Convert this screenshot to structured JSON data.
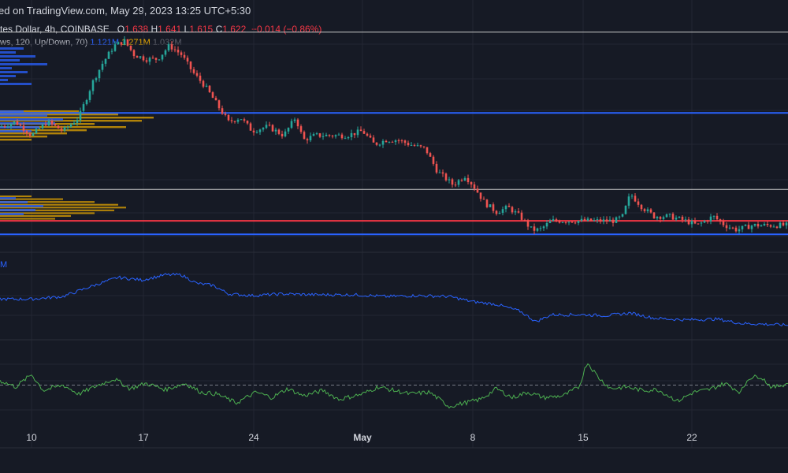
{
  "header": {
    "caption": "ed on TradingView.com, May 29, 2023 13:25 UTC+5:30"
  },
  "legend": {
    "symbol": "tes Dollar, 4h, COINBASE",
    "o_label": "O",
    "o_value": "1.638",
    "h_label": "H",
    "h_value": "1.641",
    "l_label": "L",
    "l_value": "1.615",
    "c_label": "C",
    "c_value": "1.622",
    "change": "−0.014 (−0.86%)"
  },
  "volume_profile_legend": {
    "label": "ws, 120, Up/Down, 70)",
    "v1": "1.121M",
    "v2": "1.271M",
    "v3": "1.032M"
  },
  "obv_legend": {
    "label": "M"
  },
  "colors": {
    "background": "#161a25",
    "grid": "#232632",
    "up_candle": "#26a69a",
    "down_candle": "#ef5350",
    "white_line": "#c8c8c8",
    "blue_line": "#2962ff",
    "red_line": "#f23645",
    "obv_line": "#2962ff",
    "rsi_line": "#4caf50",
    "profile_orange": "#e6a700",
    "profile_blue": "#2962ff"
  },
  "chart_data": {
    "type": "candlestick",
    "x_ticks": [
      "10",
      "17",
      "24",
      "May",
      "8",
      "15",
      "22"
    ],
    "price_path": [
      [
        0,
        1.68
      ],
      [
        20,
        1.69
      ],
      [
        40,
        1.66
      ],
      [
        60,
        1.69
      ],
      [
        80,
        1.67
      ],
      [
        100,
        1.7
      ],
      [
        118,
        1.78
      ],
      [
        130,
        1.82
      ],
      [
        145,
        1.86
      ],
      [
        158,
        1.87
      ],
      [
        170,
        1.84
      ],
      [
        185,
        1.83
      ],
      [
        200,
        1.83
      ],
      [
        215,
        1.86
      ],
      [
        230,
        1.84
      ],
      [
        245,
        1.8
      ],
      [
        260,
        1.77
      ],
      [
        275,
        1.73
      ],
      [
        290,
        1.69
      ],
      [
        305,
        1.7
      ],
      [
        320,
        1.67
      ],
      [
        340,
        1.68
      ],
      [
        360,
        1.66
      ],
      [
        375,
        1.7
      ],
      [
        385,
        1.65
      ],
      [
        400,
        1.66
      ],
      [
        420,
        1.66
      ],
      [
        440,
        1.66
      ],
      [
        460,
        1.67
      ],
      [
        475,
        1.64
      ],
      [
        490,
        1.65
      ],
      [
        505,
        1.65
      ],
      [
        520,
        1.64
      ],
      [
        540,
        1.63
      ],
      [
        555,
        1.58
      ],
      [
        575,
        1.55
      ],
      [
        590,
        1.57
      ],
      [
        600,
        1.55
      ],
      [
        615,
        1.51
      ],
      [
        630,
        1.49
      ],
      [
        645,
        1.5
      ],
      [
        660,
        1.48
      ],
      [
        675,
        1.45
      ],
      [
        685,
        1.45
      ],
      [
        700,
        1.47
      ],
      [
        720,
        1.47
      ],
      [
        740,
        1.47
      ],
      [
        760,
        1.47
      ],
      [
        780,
        1.47
      ],
      [
        790,
        1.48
      ],
      [
        800,
        1.53
      ],
      [
        815,
        1.5
      ],
      [
        830,
        1.48
      ],
      [
        850,
        1.48
      ],
      [
        870,
        1.47
      ],
      [
        885,
        1.46
      ],
      [
        905,
        1.48
      ],
      [
        920,
        1.46
      ],
      [
        935,
        1.45
      ],
      [
        955,
        1.46
      ],
      [
        975,
        1.46
      ],
      [
        1000,
        1.46
      ]
    ],
    "levels": [
      {
        "name": "white-top",
        "price": 1.89
      },
      {
        "name": "blue-upper",
        "price": 1.71
      },
      {
        "name": "white-mid",
        "price": 1.54
      },
      {
        "name": "red",
        "price": 1.47
      },
      {
        "name": "blue-lower",
        "price": 1.44
      }
    ],
    "obv_path": [
      [
        0,
        0.46
      ],
      [
        40,
        0.46
      ],
      [
        80,
        0.49
      ],
      [
        120,
        0.62
      ],
      [
        150,
        0.71
      ],
      [
        180,
        0.68
      ],
      [
        210,
        0.74
      ],
      [
        230,
        0.74
      ],
      [
        250,
        0.64
      ],
      [
        270,
        0.62
      ],
      [
        290,
        0.52
      ],
      [
        320,
        0.5
      ],
      [
        360,
        0.52
      ],
      [
        400,
        0.51
      ],
      [
        450,
        0.51
      ],
      [
        490,
        0.49
      ],
      [
        530,
        0.5
      ],
      [
        570,
        0.49
      ],
      [
        600,
        0.43
      ],
      [
        630,
        0.4
      ],
      [
        660,
        0.32
      ],
      [
        680,
        0.2
      ],
      [
        700,
        0.28
      ],
      [
        740,
        0.28
      ],
      [
        770,
        0.27
      ],
      [
        800,
        0.3
      ],
      [
        830,
        0.24
      ],
      [
        870,
        0.22
      ],
      [
        910,
        0.23
      ],
      [
        940,
        0.18
      ],
      [
        970,
        0.17
      ],
      [
        1000,
        0.16
      ]
    ],
    "rsi_path": [
      [
        0,
        55
      ],
      [
        20,
        48
      ],
      [
        40,
        62
      ],
      [
        55,
        44
      ],
      [
        80,
        50
      ],
      [
        100,
        40
      ],
      [
        125,
        50
      ],
      [
        145,
        57
      ],
      [
        165,
        46
      ],
      [
        185,
        52
      ],
      [
        210,
        45
      ],
      [
        235,
        52
      ],
      [
        255,
        42
      ],
      [
        275,
        40
      ],
      [
        300,
        30
      ],
      [
        325,
        42
      ],
      [
        345,
        36
      ],
      [
        365,
        46
      ],
      [
        385,
        38
      ],
      [
        410,
        44
      ],
      [
        430,
        34
      ],
      [
        460,
        40
      ],
      [
        480,
        48
      ],
      [
        500,
        44
      ],
      [
        520,
        40
      ],
      [
        545,
        42
      ],
      [
        570,
        26
      ],
      [
        590,
        30
      ],
      [
        610,
        34
      ],
      [
        630,
        46
      ],
      [
        650,
        36
      ],
      [
        670,
        42
      ],
      [
        690,
        36
      ],
      [
        715,
        38
      ],
      [
        735,
        48
      ],
      [
        745,
        76
      ],
      [
        760,
        58
      ],
      [
        775,
        46
      ],
      [
        795,
        48
      ],
      [
        815,
        44
      ],
      [
        835,
        45
      ],
      [
        860,
        32
      ],
      [
        880,
        42
      ],
      [
        900,
        45
      ],
      [
        920,
        52
      ],
      [
        940,
        42
      ],
      [
        950,
        58
      ],
      [
        965,
        60
      ],
      [
        980,
        47
      ],
      [
        1000,
        52
      ]
    ],
    "rsi_midline": 50
  }
}
